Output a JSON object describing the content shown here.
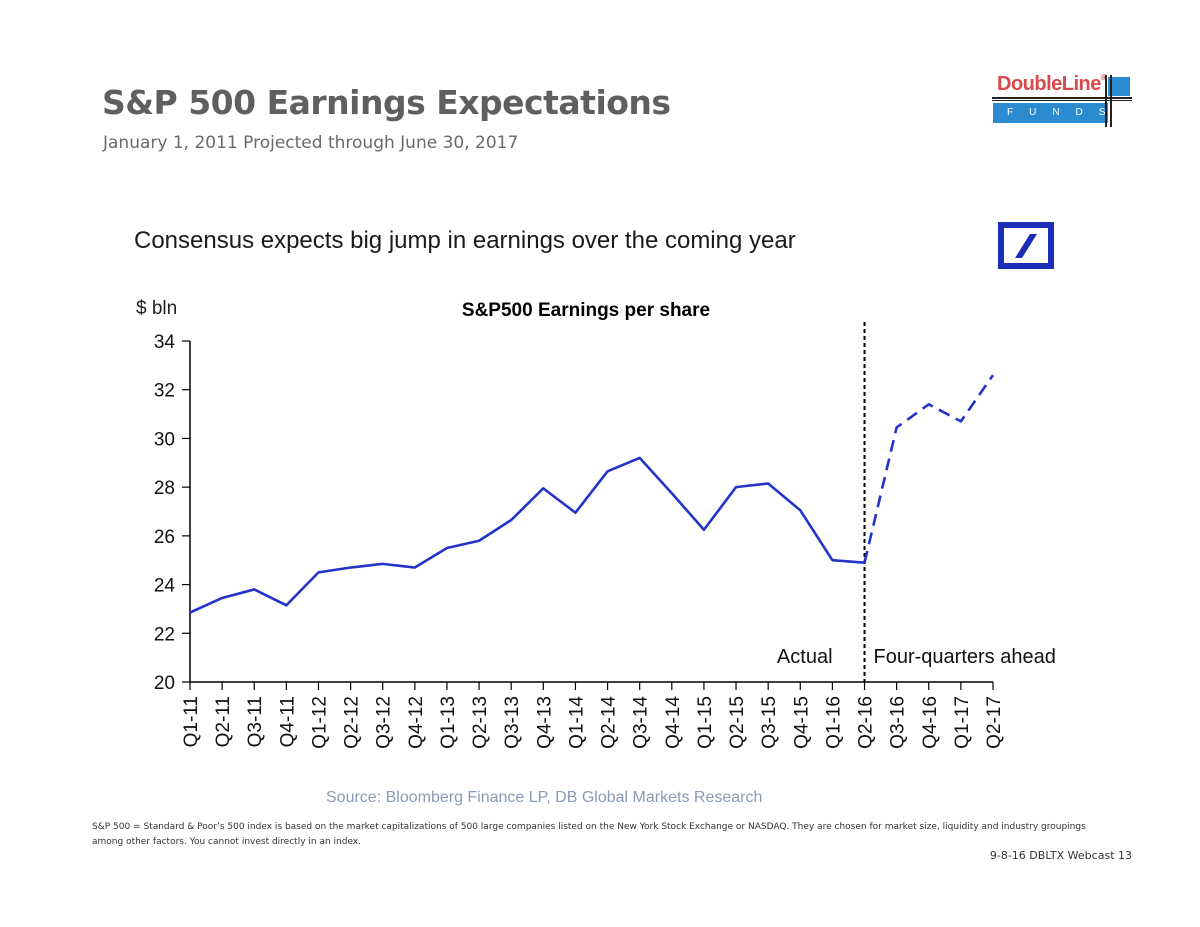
{
  "slide": {
    "title": "S&P 500 Earnings Expectations",
    "subtitle": "January 1, 2011 Projected through June 30, 2017",
    "headline": "Consensus expects big jump in earnings over the coming year",
    "source": "Source: Bloomberg Finance LP, DB Global Markets Research",
    "disclaimer": "S&P 500 = Standard & Poor’s 500 index is based on the market capitalizations of 500 large companies listed on the New York Stock Exchange or NASDAQ. They are chosen for market size, liquidity and industry groupings among other factors. You cannot invest directly in  an  index.",
    "page_ref": "9-8-16 DBLTX Webcast 13"
  },
  "logos": {
    "doubleline_name": "DoubleLine",
    "doubleline_reg": "®",
    "doubleline_tag": "FUNDS",
    "brand_red": "#d9484a",
    "brand_blue": "#2a8bd1",
    "db_blue": "#1a2fb5"
  },
  "chart_data": {
    "type": "line",
    "title": "S&P500 Earnings per share",
    "ylabel": "$ bln",
    "xlabel": "",
    "ylim": [
      20,
      34
    ],
    "yticks": [
      20,
      22,
      24,
      26,
      28,
      30,
      32,
      34
    ],
    "grid": false,
    "line_color": "#2233c8",
    "categories": [
      "Q1-11",
      "Q2-11",
      "Q3-11",
      "Q4-11",
      "Q1-12",
      "Q2-12",
      "Q3-12",
      "Q4-12",
      "Q1-13",
      "Q2-13",
      "Q3-13",
      "Q4-13",
      "Q1-14",
      "Q2-14",
      "Q3-14",
      "Q4-14",
      "Q1-15",
      "Q2-15",
      "Q3-15",
      "Q4-15",
      "Q1-16",
      "Q2-16",
      "Q3-16",
      "Q4-16",
      "Q1-17",
      "Q2-17"
    ],
    "series": [
      {
        "name": "Actual",
        "style": "solid",
        "x": [
          "Q1-11",
          "Q2-11",
          "Q3-11",
          "Q4-11",
          "Q1-12",
          "Q2-12",
          "Q3-12",
          "Q4-12",
          "Q1-13",
          "Q2-13",
          "Q3-13",
          "Q4-13",
          "Q1-14",
          "Q2-14",
          "Q3-14",
          "Q4-14",
          "Q1-15",
          "Q2-15",
          "Q3-15",
          "Q4-15",
          "Q1-16",
          "Q2-16"
        ],
        "values": [
          22.85,
          23.45,
          23.8,
          23.15,
          24.5,
          24.7,
          24.85,
          24.7,
          25.5,
          25.8,
          26.65,
          27.95,
          26.95,
          28.65,
          29.2,
          27.75,
          26.25,
          28.0,
          28.15,
          27.05,
          25.0,
          24.9
        ]
      },
      {
        "name": "Four-quarters ahead",
        "style": "dashed",
        "x": [
          "Q2-16",
          "Q3-16",
          "Q4-16",
          "Q1-17",
          "Q2-17"
        ],
        "values": [
          24.9,
          30.45,
          31.4,
          30.7,
          32.6
        ]
      }
    ],
    "annotations": [
      {
        "text": "Actual",
        "position": "left of divider"
      },
      {
        "text": "Four-quarters ahead",
        "position": "right of divider"
      }
    ],
    "divider_at": "Q2-16"
  }
}
